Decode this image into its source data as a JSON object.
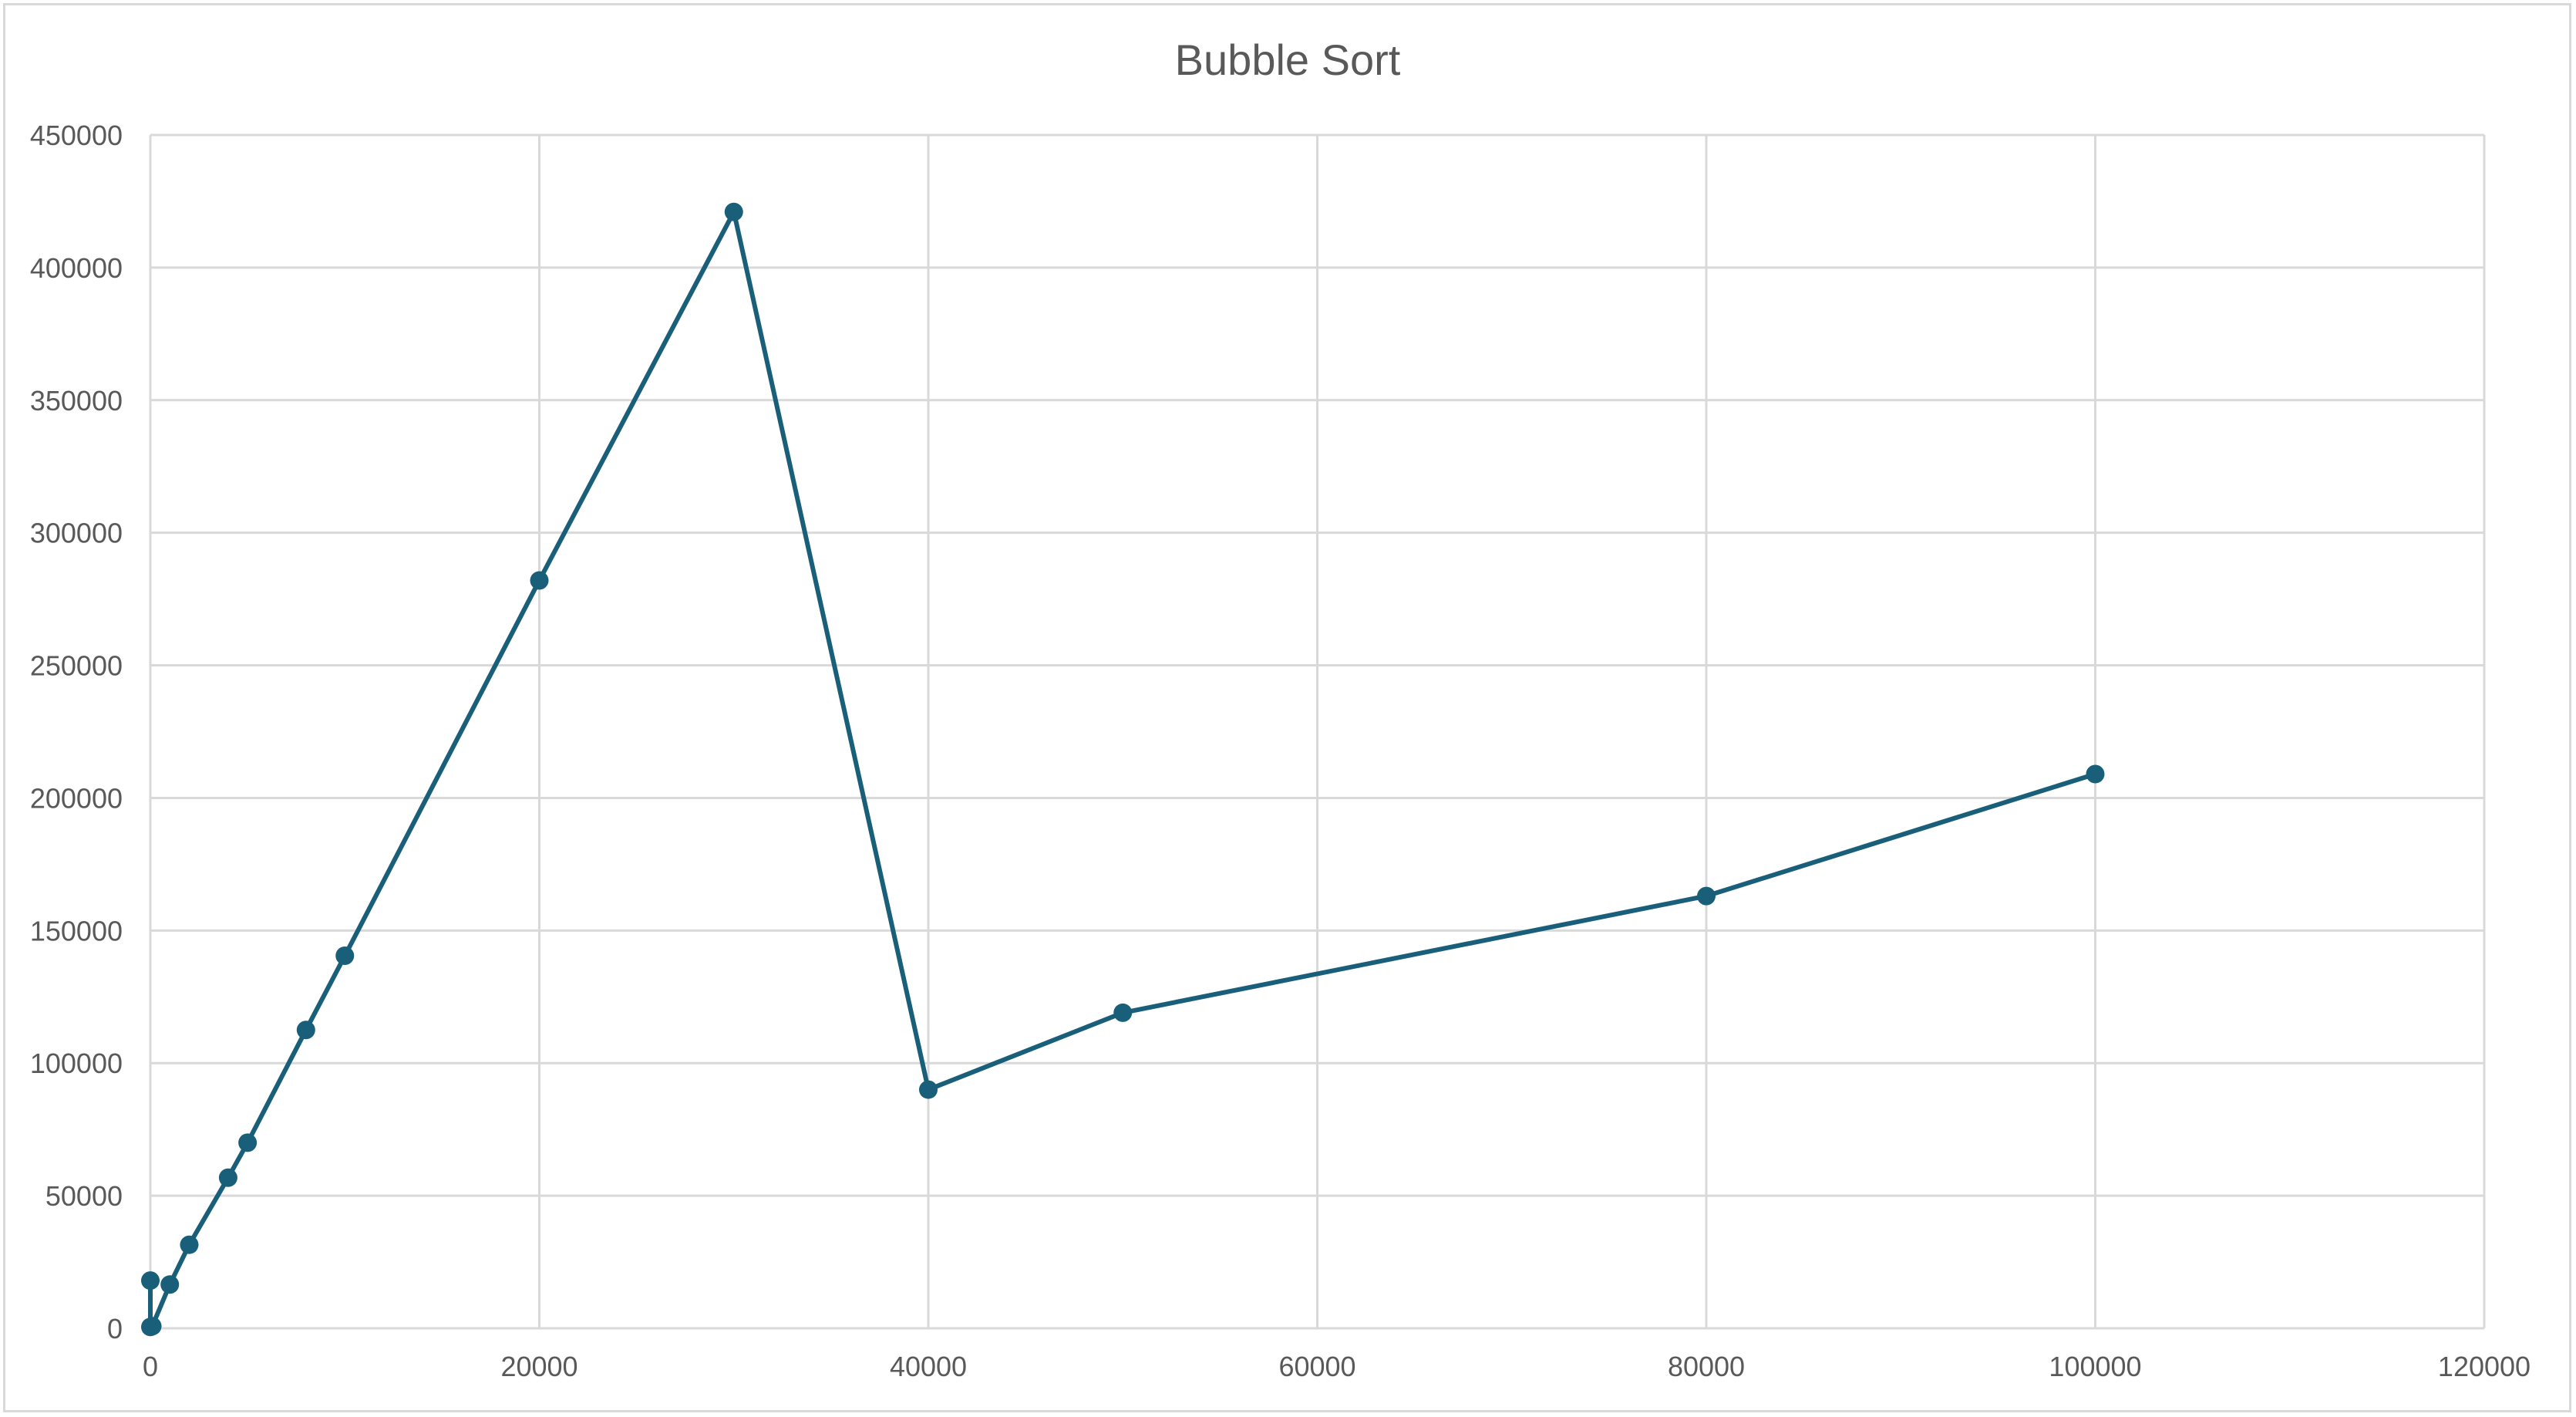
{
  "chart_data": {
    "type": "scatter",
    "title": "Bubble Sort",
    "xlabel": "",
    "ylabel": "",
    "xlim": [
      0,
      120000
    ],
    "ylim": [
      0,
      450000
    ],
    "x_ticks": [
      0,
      20000,
      40000,
      60000,
      80000,
      100000,
      120000
    ],
    "y_ticks": [
      0,
      50000,
      100000,
      150000,
      200000,
      250000,
      300000,
      350000,
      400000,
      450000
    ],
    "x_tick_labels": [
      "0",
      "20000",
      "40000",
      "60000",
      "80000",
      "100000",
      "120000"
    ],
    "y_tick_labels": [
      "0",
      "50000",
      "100000",
      "150000",
      "200000",
      "250000",
      "300000",
      "350000",
      "400000",
      "450000"
    ],
    "grid": true,
    "legend": "none",
    "line_color": "#1a5f7a",
    "series": [
      {
        "points": [
          {
            "x": 0,
            "y": 18000
          },
          {
            "x": 0,
            "y": 500
          },
          {
            "x": 100,
            "y": 800
          },
          {
            "x": 1000,
            "y": 16500
          },
          {
            "x": 2000,
            "y": 31500
          },
          {
            "x": 4000,
            "y": 56800
          },
          {
            "x": 5000,
            "y": 70000
          },
          {
            "x": 8000,
            "y": 112500
          },
          {
            "x": 10000,
            "y": 140500
          },
          {
            "x": 20000,
            "y": 282000
          },
          {
            "x": 30000,
            "y": 421000
          },
          {
            "x": 40000,
            "y": 90000
          },
          {
            "x": 50000,
            "y": 119000
          },
          {
            "x": 80000,
            "y": 163000
          },
          {
            "x": 100000,
            "y": 209000
          }
        ]
      }
    ]
  }
}
